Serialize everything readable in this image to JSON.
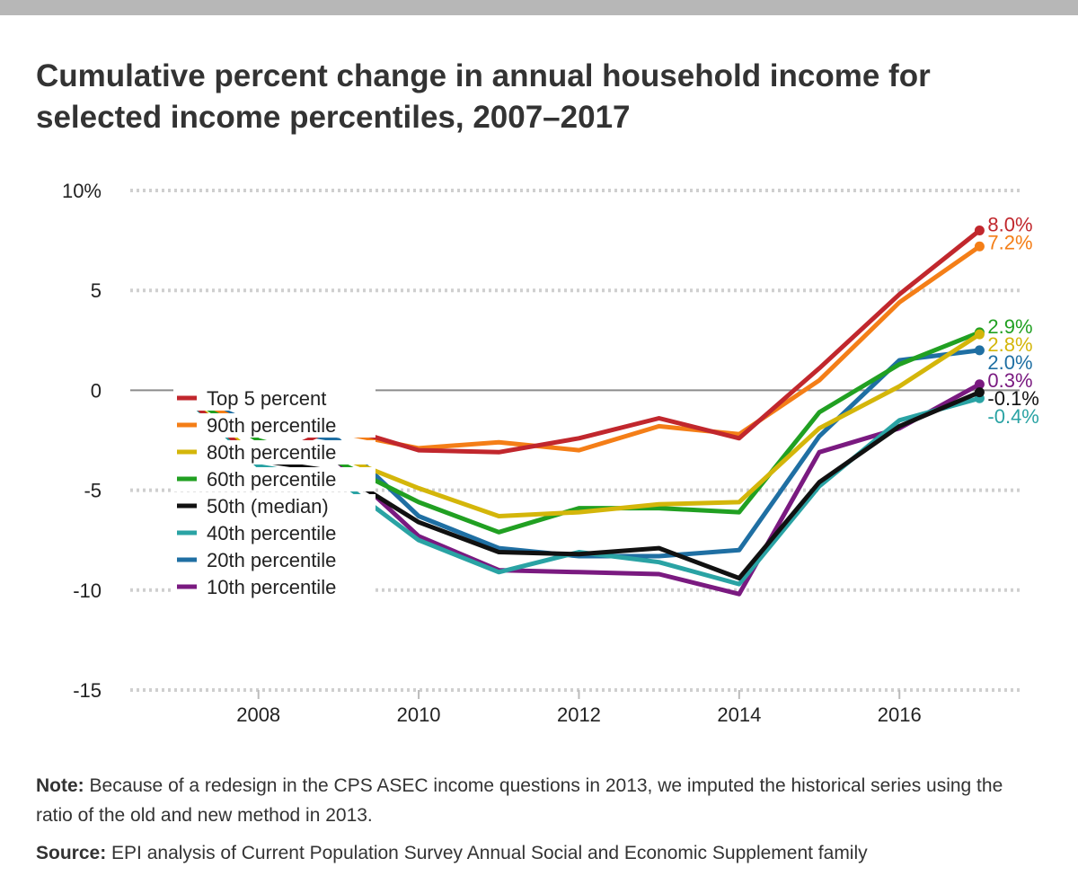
{
  "title": "Cumulative percent change in annual household income for selected income percentiles, 2007–2017",
  "chart_data": {
    "type": "line",
    "x": [
      2007,
      2008,
      2009,
      2010,
      2011,
      2012,
      2013,
      2014,
      2015,
      2016,
      2017
    ],
    "xticks": [
      "2008",
      "2010",
      "2012",
      "2014",
      "2016"
    ],
    "yticks": [
      "10%",
      "5",
      "0",
      "-5",
      "-10",
      "-15"
    ],
    "ylim": [
      -15,
      10
    ],
    "xlim": [
      2006.4,
      2017.5
    ],
    "grid": "horizontal dotted",
    "legend_position": "top-left",
    "series": [
      {
        "name": "Top 5 percent",
        "color": "#c1272d",
        "end_label": "8.0%",
        "label_color": "#c1272d",
        "values": [
          0.0,
          -3.6,
          -1.8,
          -3.0,
          -3.1,
          -2.4,
          -1.4,
          -2.4,
          1.1,
          4.8,
          8.0
        ]
      },
      {
        "name": "90th percentile",
        "color": "#f47e17",
        "end_label": "7.2%",
        "label_color": "#f47e17",
        "values": [
          0.0,
          -2.0,
          -2.1,
          -2.9,
          -2.6,
          -3.0,
          -1.8,
          -2.2,
          0.5,
          4.4,
          7.2
        ]
      },
      {
        "name": "80th percentile",
        "color": "#d4b60a",
        "end_label": "2.8%",
        "label_color": "#d4b60a",
        "values": [
          0.0,
          -3.4,
          -3.3,
          -4.9,
          -6.3,
          -6.1,
          -5.7,
          -5.6,
          -1.9,
          0.2,
          2.8
        ]
      },
      {
        "name": "60th percentile",
        "color": "#21a022",
        "end_label": "2.9%",
        "label_color": "#21a022",
        "values": [
          0.0,
          -2.5,
          -3.6,
          -5.6,
          -7.1,
          -5.9,
          -5.9,
          -6.1,
          -1.1,
          1.3,
          2.9
        ]
      },
      {
        "name": "50th (median)",
        "color": "#111111",
        "end_label": "-0.1%",
        "label_color": "#111111",
        "values": [
          0.0,
          -3.5,
          -4.1,
          -6.6,
          -8.1,
          -8.2,
          -7.9,
          -9.4,
          -4.6,
          -1.8,
          -0.1
        ]
      },
      {
        "name": "40th percentile",
        "color": "#2aa3a4",
        "end_label": "-0.4%",
        "label_color": "#2aa3a4",
        "values": [
          0.0,
          -3.8,
          -4.5,
          -7.5,
          -9.1,
          -8.1,
          -8.6,
          -9.7,
          -4.8,
          -1.5,
          -0.4
        ]
      },
      {
        "name": "20th percentile",
        "color": "#1f6fa3",
        "end_label": "2.0%",
        "label_color": "#1f6fa3",
        "values": [
          0.0,
          -1.8,
          -2.5,
          -6.3,
          -7.9,
          -8.3,
          -8.3,
          -8.0,
          -2.3,
          1.5,
          2.0
        ]
      },
      {
        "name": "10th percentile",
        "color": "#7a1a80",
        "end_label": "0.3%",
        "label_color": "#7a1a80",
        "values": [
          0.0,
          -3.6,
          -3.6,
          -7.3,
          -9.0,
          -9.1,
          -9.2,
          -10.2,
          -3.1,
          -1.9,
          0.3
        ]
      }
    ]
  },
  "notes": {
    "note_label": "Note:",
    "note_text": " Because of a redesign in the CPS ASEC income questions in 2013, we imputed the historical series using the ratio of the old and new method in 2013.",
    "source_label": "Source:",
    "source_text": " EPI analysis of Current Population Survey Annual Social and Economic Supplement family"
  }
}
